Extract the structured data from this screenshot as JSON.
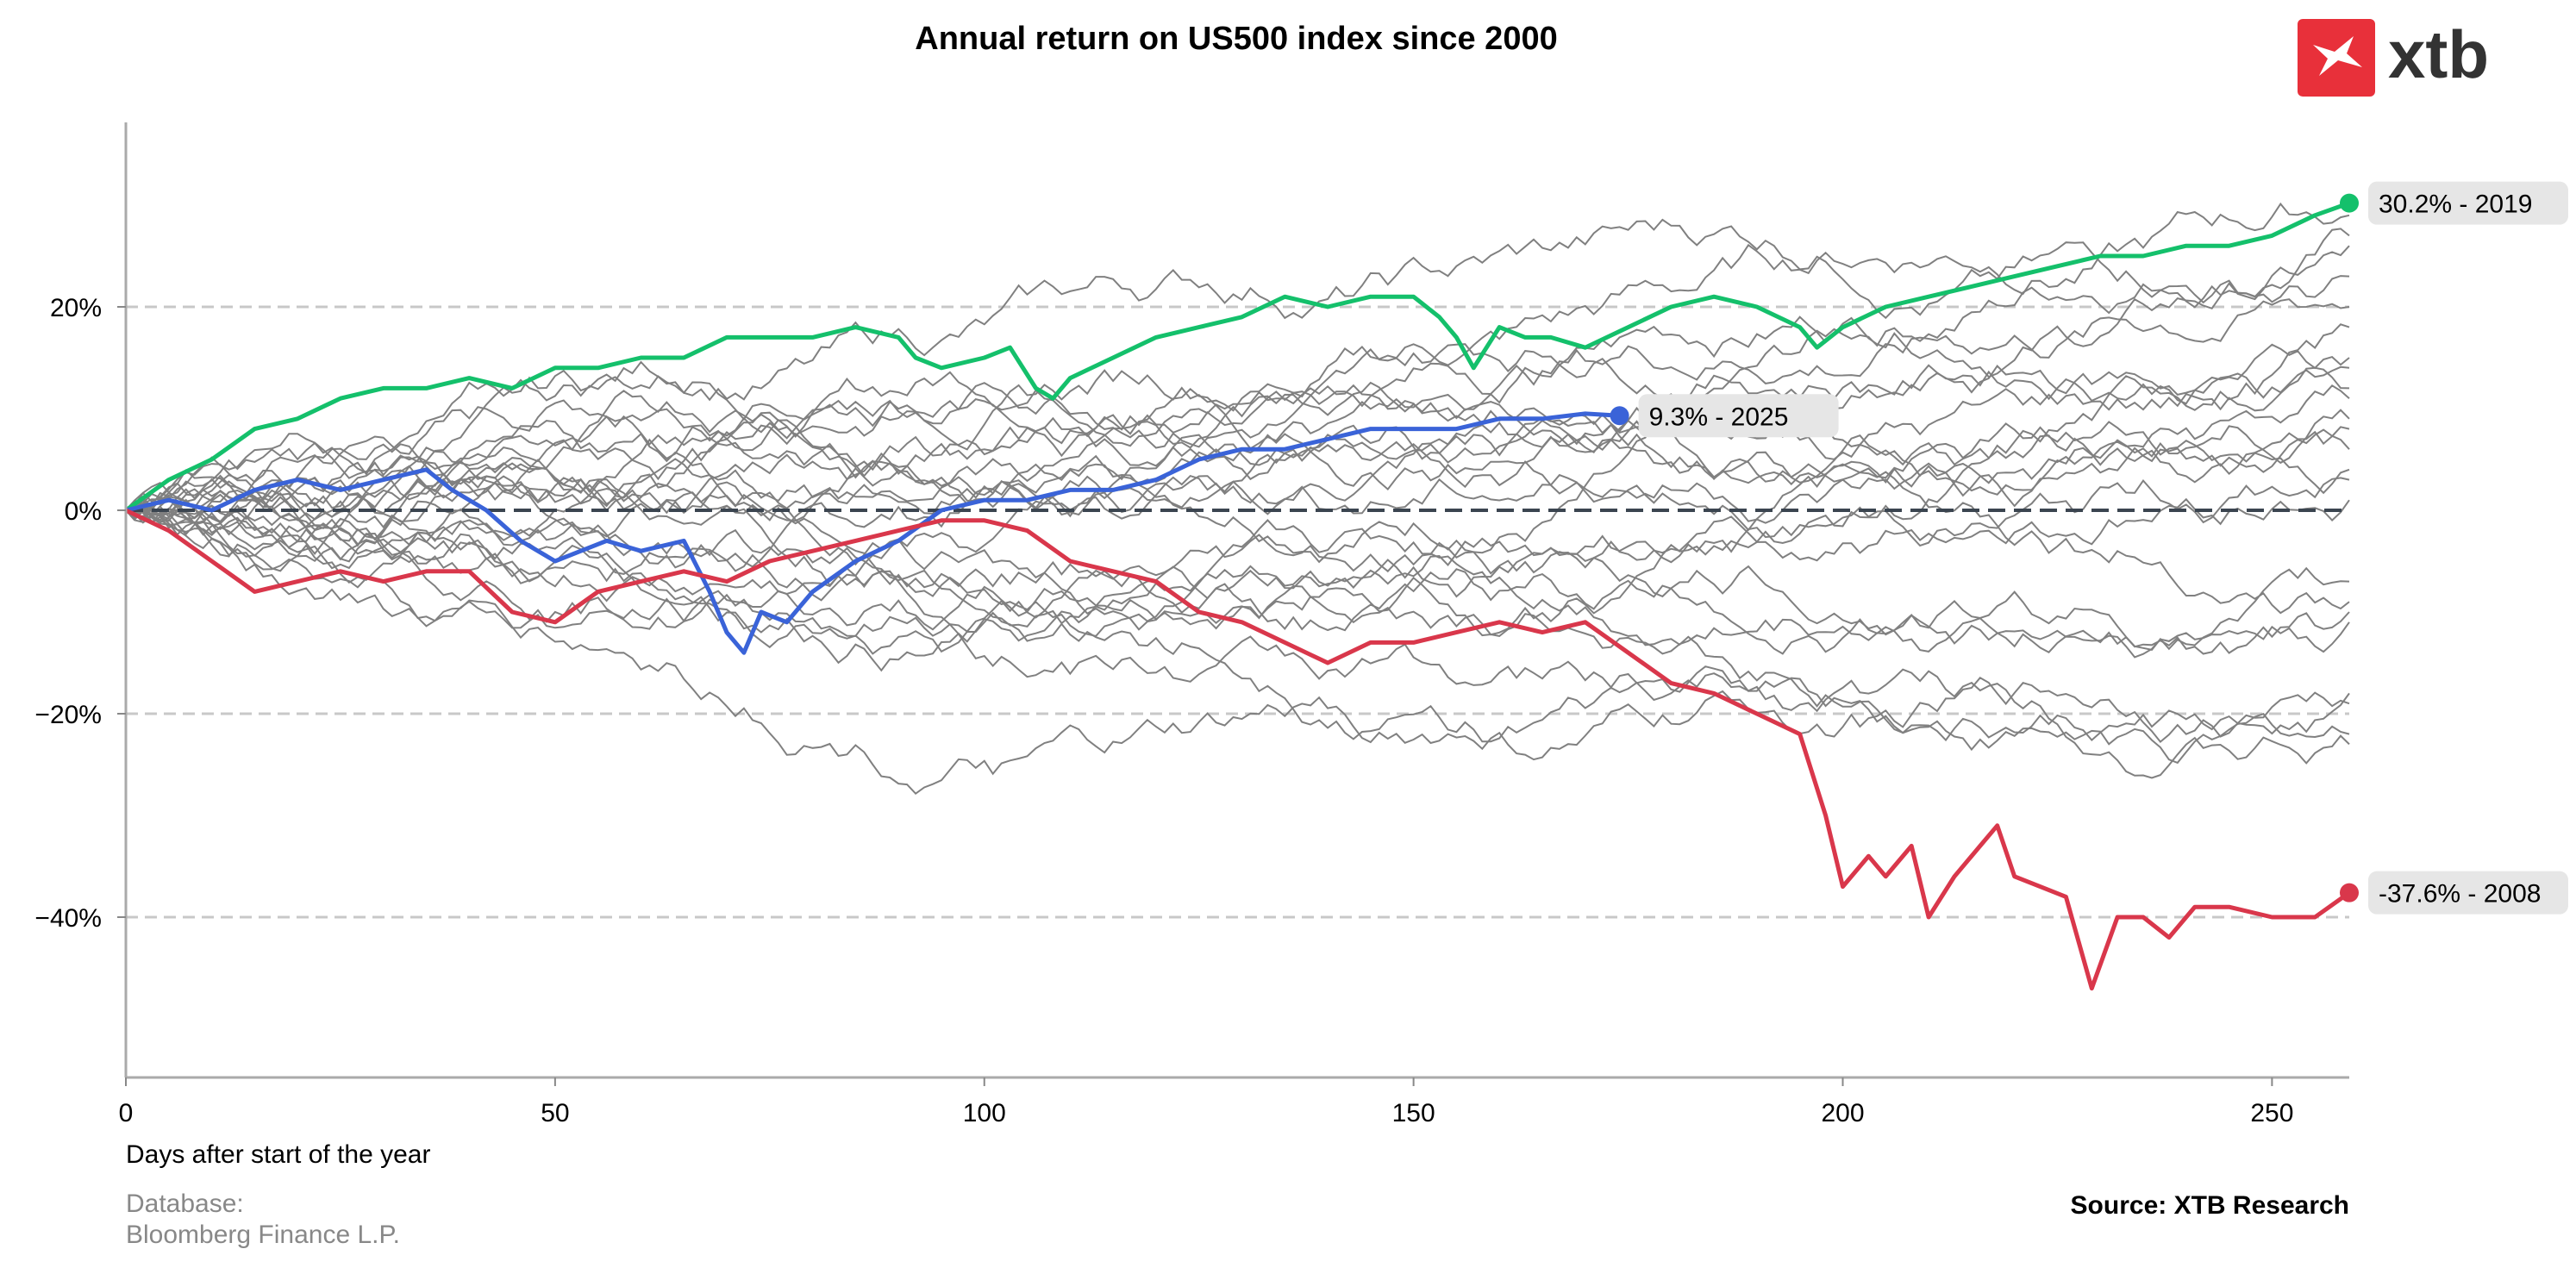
{
  "logo": {
    "text": "xtb",
    "color": "#e8303a"
  },
  "footer": {
    "database_line1": "Database:",
    "database_line2": "Bloomberg Finance L.P.",
    "source": "Source: XTB Research"
  },
  "colors": {
    "background_series": "#808080",
    "highlight_2019": "#14c06b",
    "highlight_2025": "#3a63d8",
    "highlight_2008": "#d9374b",
    "zero_line": "#3b4550",
    "grid": "#c8c8c8"
  },
  "chart_data": {
    "type": "line",
    "title": "Annual return on US500 index since 2000",
    "xlabel": "Days after start of the year",
    "ylabel": "",
    "xlim": [
      0,
      259
    ],
    "ylim": [
      -56,
      38
    ],
    "x_ticks": [
      0,
      50,
      100,
      150,
      200,
      250
    ],
    "y_ticks": [
      -40,
      -20,
      0,
      20
    ],
    "y_tick_labels": [
      "−40%",
      "−20%",
      "0%",
      "20%"
    ],
    "grid": "horizontal dashed at y ticks",
    "highlighted_series": [
      {
        "year": "2019",
        "label": "30.2% - 2019",
        "final_value": 30.2,
        "color": "#14c06b",
        "points": [
          [
            0,
            0
          ],
          [
            5,
            3
          ],
          [
            10,
            5
          ],
          [
            15,
            8
          ],
          [
            20,
            9
          ],
          [
            25,
            11
          ],
          [
            30,
            12
          ],
          [
            35,
            12
          ],
          [
            40,
            13
          ],
          [
            45,
            12
          ],
          [
            50,
            14
          ],
          [
            55,
            14
          ],
          [
            60,
            15
          ],
          [
            65,
            15
          ],
          [
            70,
            17
          ],
          [
            75,
            17
          ],
          [
            80,
            17
          ],
          [
            85,
            18
          ],
          [
            90,
            17
          ],
          [
            92,
            15
          ],
          [
            95,
            14
          ],
          [
            100,
            15
          ],
          [
            103,
            16
          ],
          [
            106,
            12
          ],
          [
            108,
            11
          ],
          [
            110,
            13
          ],
          [
            115,
            15
          ],
          [
            120,
            17
          ],
          [
            125,
            18
          ],
          [
            130,
            19
          ],
          [
            135,
            21
          ],
          [
            140,
            20
          ],
          [
            145,
            21
          ],
          [
            150,
            21
          ],
          [
            153,
            19
          ],
          [
            155,
            17
          ],
          [
            157,
            14
          ],
          [
            160,
            18
          ],
          [
            163,
            17
          ],
          [
            166,
            17
          ],
          [
            170,
            16
          ],
          [
            175,
            18
          ],
          [
            180,
            20
          ],
          [
            185,
            21
          ],
          [
            190,
            20
          ],
          [
            195,
            18
          ],
          [
            197,
            16
          ],
          [
            200,
            18
          ],
          [
            205,
            20
          ],
          [
            210,
            21
          ],
          [
            215,
            22
          ],
          [
            220,
            23
          ],
          [
            225,
            24
          ],
          [
            230,
            25
          ],
          [
            235,
            25
          ],
          [
            240,
            26
          ],
          [
            245,
            26
          ],
          [
            250,
            27
          ],
          [
            255,
            29
          ],
          [
            259,
            30.2
          ]
        ]
      },
      {
        "year": "2025",
        "label": "9.3% - 2025",
        "final_value": 9.3,
        "color": "#3a63d8",
        "points": [
          [
            0,
            0
          ],
          [
            5,
            1
          ],
          [
            10,
            0
          ],
          [
            15,
            2
          ],
          [
            20,
            3
          ],
          [
            25,
            2
          ],
          [
            30,
            3
          ],
          [
            35,
            4
          ],
          [
            38,
            2
          ],
          [
            42,
            0
          ],
          [
            46,
            -3
          ],
          [
            50,
            -5
          ],
          [
            53,
            -4
          ],
          [
            56,
            -3
          ],
          [
            60,
            -4
          ],
          [
            65,
            -3
          ],
          [
            68,
            -8
          ],
          [
            70,
            -12
          ],
          [
            72,
            -14
          ],
          [
            74,
            -10
          ],
          [
            77,
            -11
          ],
          [
            80,
            -8
          ],
          [
            85,
            -5
          ],
          [
            90,
            -3
          ],
          [
            95,
            0
          ],
          [
            100,
            1
          ],
          [
            105,
            1
          ],
          [
            110,
            2
          ],
          [
            115,
            2
          ],
          [
            120,
            3
          ],
          [
            125,
            5
          ],
          [
            130,
            6
          ],
          [
            135,
            6
          ],
          [
            140,
            7
          ],
          [
            145,
            8
          ],
          [
            150,
            8
          ],
          [
            155,
            8
          ],
          [
            160,
            9
          ],
          [
            165,
            9
          ],
          [
            170,
            9.5
          ],
          [
            174,
            9.3
          ]
        ]
      },
      {
        "year": "2008",
        "label": "-37.6% - 2008",
        "final_value": -37.6,
        "color": "#d9374b",
        "points": [
          [
            0,
            0
          ],
          [
            5,
            -2
          ],
          [
            10,
            -5
          ],
          [
            15,
            -8
          ],
          [
            20,
            -7
          ],
          [
            25,
            -6
          ],
          [
            30,
            -7
          ],
          [
            35,
            -6
          ],
          [
            40,
            -6
          ],
          [
            45,
            -10
          ],
          [
            50,
            -11
          ],
          [
            55,
            -8
          ],
          [
            60,
            -7
          ],
          [
            65,
            -6
          ],
          [
            70,
            -7
          ],
          [
            75,
            -5
          ],
          [
            80,
            -4
          ],
          [
            85,
            -3
          ],
          [
            90,
            -2
          ],
          [
            95,
            -1
          ],
          [
            100,
            -1
          ],
          [
            105,
            -2
          ],
          [
            110,
            -5
          ],
          [
            115,
            -6
          ],
          [
            120,
            -7
          ],
          [
            125,
            -10
          ],
          [
            130,
            -11
          ],
          [
            135,
            -13
          ],
          [
            140,
            -15
          ],
          [
            145,
            -13
          ],
          [
            150,
            -13
          ],
          [
            155,
            -12
          ],
          [
            160,
            -11
          ],
          [
            165,
            -12
          ],
          [
            170,
            -11
          ],
          [
            175,
            -14
          ],
          [
            180,
            -17
          ],
          [
            185,
            -18
          ],
          [
            190,
            -20
          ],
          [
            195,
            -22
          ],
          [
            198,
            -30
          ],
          [
            200,
            -37
          ],
          [
            203,
            -34
          ],
          [
            205,
            -36
          ],
          [
            208,
            -33
          ],
          [
            210,
            -40
          ],
          [
            213,
            -36
          ],
          [
            216,
            -33
          ],
          [
            218,
            -31
          ],
          [
            220,
            -36
          ],
          [
            223,
            -37
          ],
          [
            226,
            -38
          ],
          [
            229,
            -47
          ],
          [
            232,
            -40
          ],
          [
            235,
            -40
          ],
          [
            238,
            -42
          ],
          [
            241,
            -39
          ],
          [
            245,
            -39
          ],
          [
            250,
            -40
          ],
          [
            255,
            -40
          ],
          [
            259,
            -37.6
          ]
        ]
      }
    ],
    "background_series_count": 24,
    "background_series_final_values": [
      27,
      26,
      29,
      23,
      20,
      18,
      15,
      14,
      12,
      11,
      9,
      8,
      6,
      4,
      3,
      1,
      -7,
      -9,
      -10,
      -11,
      -18,
      -19,
      -22,
      -23
    ]
  }
}
